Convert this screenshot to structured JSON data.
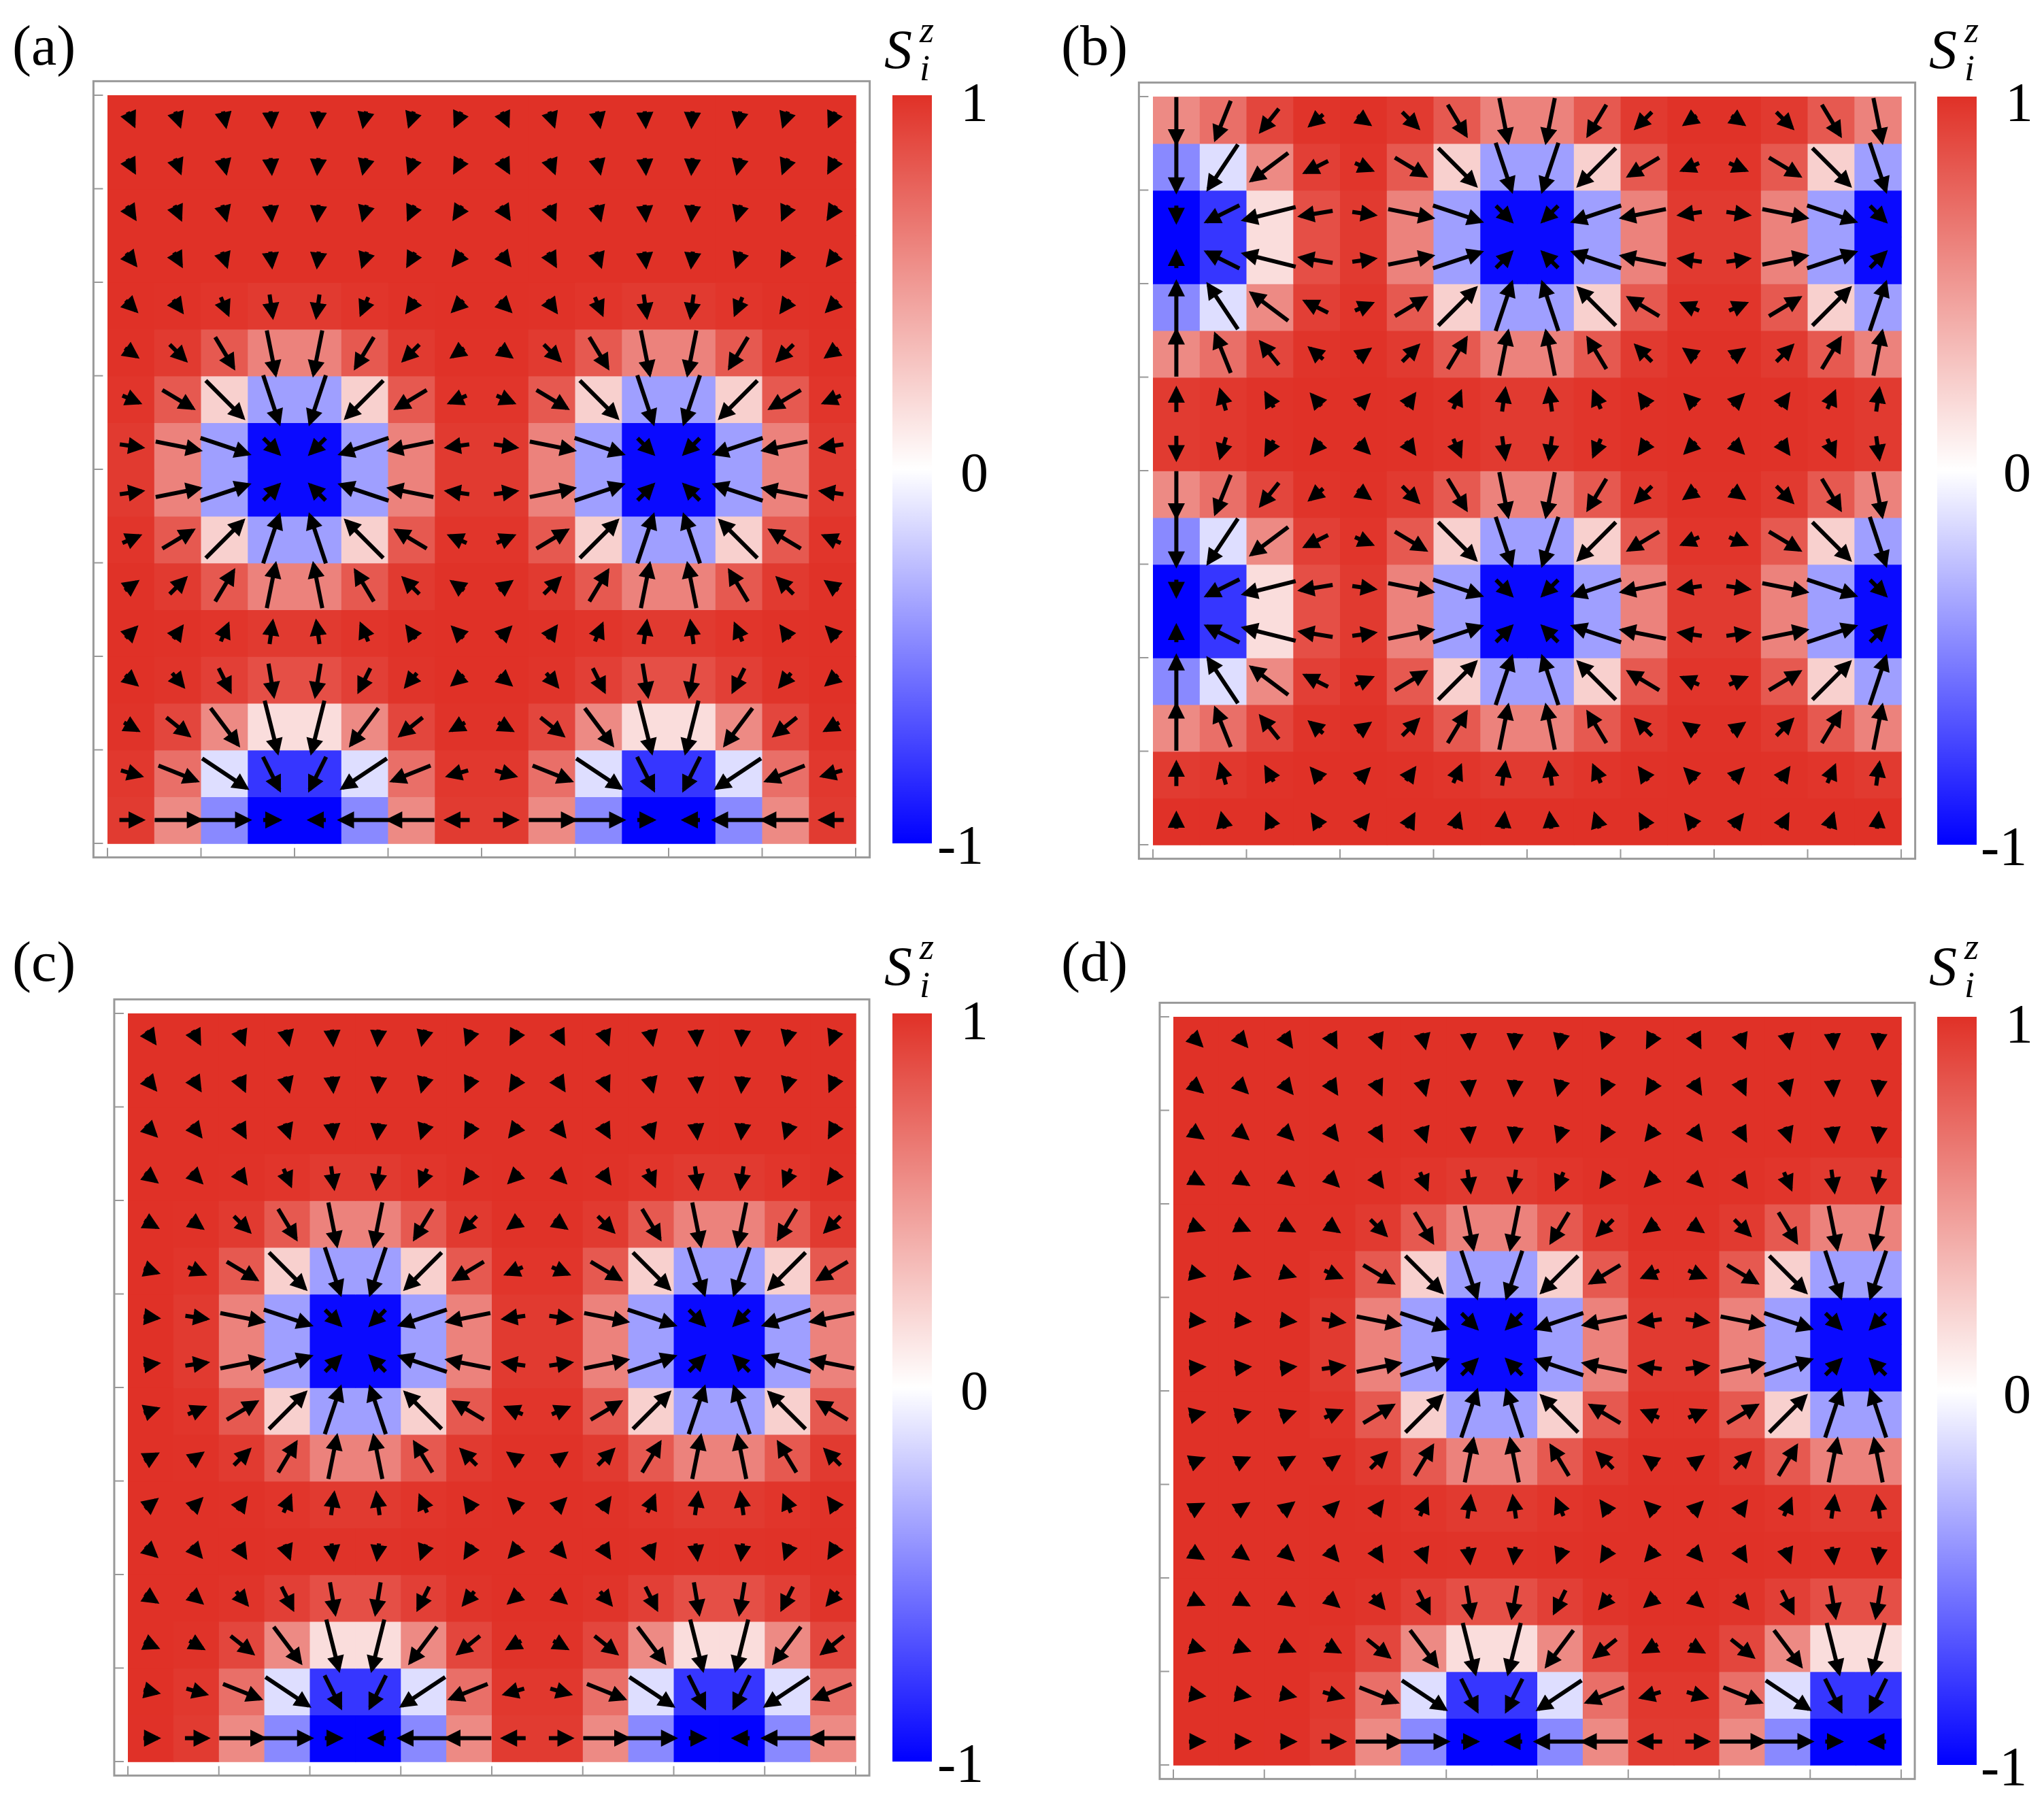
{
  "figure": {
    "description_type": "spin texture panels",
    "colormap": {
      "low": "#0000ff",
      "mid": "#ffffff",
      "high": "#e03127"
    }
  },
  "chart_data": [
    {
      "type": "heatmap",
      "panel_label": "(a)",
      "colorbar": {
        "title": "S",
        "superscript": "z",
        "subscript": "i",
        "ticks": [
          "1",
          "0",
          "-1"
        ],
        "range": [
          -1,
          1
        ]
      },
      "lattice_size": [
        16,
        16
      ],
      "skyrmion_centers": [
        [
          3.5,
          7.5
        ],
        [
          11.5,
          7.5
        ],
        [
          3.5,
          0.0
        ],
        [
          11.5,
          0.0
        ]
      ],
      "background_value": 1
    },
    {
      "type": "heatmap",
      "panel_label": "(b)",
      "colorbar": {
        "title": "S",
        "superscript": "z",
        "subscript": "i",
        "ticks": [
          "1",
          "0",
          "-1"
        ],
        "range": [
          -1,
          1
        ]
      },
      "lattice_size": [
        16,
        16
      ],
      "skyrmion_centers": [
        [
          7.5,
          12.5
        ],
        [
          7.5,
          4.5
        ],
        [
          0.0,
          12.5
        ],
        [
          15.5,
          12.5
        ],
        [
          0.0,
          4.5
        ],
        [
          15.5,
          4.5
        ]
      ],
      "background_value": 1
    },
    {
      "type": "heatmap",
      "panel_label": "(c)",
      "colorbar": {
        "title": "S",
        "superscript": "z",
        "subscript": "i",
        "ticks": [
          "1",
          "0",
          "-1"
        ],
        "range": [
          -1,
          1
        ]
      },
      "lattice_size": [
        16,
        16
      ],
      "skyrmion_centers": [
        [
          4.5,
          8.5
        ],
        [
          12.5,
          8.5
        ],
        [
          4.5,
          0.0
        ],
        [
          12.5,
          0.0
        ]
      ],
      "background_value": 1
    },
    {
      "type": "heatmap",
      "panel_label": "(d)",
      "colorbar": {
        "title": "S",
        "superscript": "z",
        "subscript": "i",
        "ticks": [
          "1",
          "0",
          "-1"
        ],
        "range": [
          -1,
          1
        ]
      },
      "lattice_size": [
        16,
        16
      ],
      "skyrmion_centers": [
        [
          6.5,
          8.5
        ],
        [
          14.5,
          8.5
        ],
        [
          6.5,
          0.0
        ],
        [
          14.5,
          0.0
        ]
      ],
      "background_value": 1
    }
  ]
}
